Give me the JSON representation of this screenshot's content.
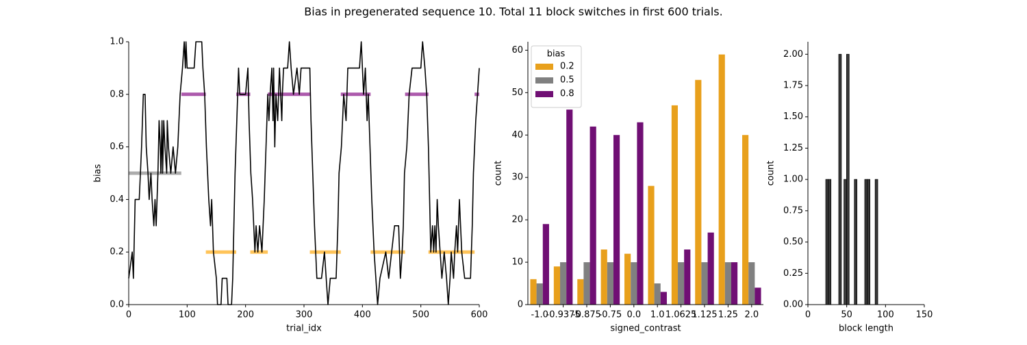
{
  "title": "Bias in pregenerated sequence 10. Total 11 block switches in first 600 trials.",
  "chart_data": [
    {
      "type": "line",
      "xlabel": "trial_idx",
      "ylabel": "bias",
      "xlim": [
        0,
        600
      ],
      "xticks": [
        0,
        100,
        200,
        300,
        400,
        500,
        600
      ],
      "ylim": [
        0,
        1
      ],
      "yticks": [
        {
          "value": 0,
          "label": "0.0"
        },
        {
          "value": 0.2,
          "label": "0.2"
        },
        {
          "value": 0.4,
          "label": "0.4"
        },
        {
          "value": 0.6,
          "label": "0.6"
        },
        {
          "value": 0.8,
          "label": "0.8"
        },
        {
          "value": 1,
          "label": "1.0"
        }
      ],
      "series": [
        {
          "color": "black",
          "x": [
            0,
            6,
            8,
            11,
            18,
            20,
            22,
            25,
            28,
            30,
            33,
            35,
            38,
            40,
            43,
            45,
            47,
            50,
            52,
            54,
            55,
            57,
            58,
            60,
            62,
            65,
            66,
            68,
            72,
            76,
            80,
            84,
            86,
            88,
            92,
            95,
            97,
            98,
            100,
            112,
            115,
            125,
            127,
            130,
            133,
            135,
            137,
            140,
            142,
            145,
            150,
            152,
            158,
            160,
            168,
            170,
            176,
            178,
            180,
            182,
            185,
            188,
            190,
            200,
            204,
            206,
            209,
            212,
            214,
            216,
            218,
            221,
            224,
            228,
            232,
            235,
            238,
            240,
            242,
            245,
            247,
            248,
            250,
            252,
            255,
            258,
            260,
            262,
            263,
            265,
            272,
            275,
            278,
            282,
            288,
            292,
            295,
            310,
            312,
            315,
            318,
            320,
            322,
            330,
            335,
            338,
            341,
            345,
            355,
            358,
            360,
            364,
            368,
            372,
            375,
            395,
            398,
            402,
            405,
            408,
            410,
            413,
            416,
            420,
            426,
            430,
            440,
            445,
            450,
            455,
            462,
            465,
            468,
            470,
            472,
            476,
            480,
            485,
            500,
            503,
            507,
            510,
            513,
            515,
            517,
            520,
            522,
            524,
            526,
            528,
            530,
            533,
            536,
            540,
            544,
            547,
            550,
            552,
            556,
            558,
            561,
            563,
            566,
            570,
            575,
            585,
            588,
            590,
            594,
            597,
            600
          ],
          "values": [
            0.1,
            0.2,
            0.1,
            0.4,
            0.4,
            0.5,
            0.6,
            0.8,
            0.8,
            0.6,
            0.5,
            0.4,
            0.5,
            0.4,
            0.3,
            0.4,
            0.3,
            0.5,
            0.7,
            0.6,
            0.5,
            0.7,
            0.5,
            0.7,
            0.6,
            0.5,
            0.7,
            0.6,
            0.5,
            0.6,
            0.5,
            0.6,
            0.7,
            0.8,
            0.9,
            1.0,
            0.9,
            1.0,
            0.9,
            0.9,
            1.0,
            1.0,
            0.9,
            0.8,
            0.6,
            0.5,
            0.4,
            0.3,
            0.4,
            0.2,
            0.1,
            0,
            0,
            0.1,
            0.1,
            0,
            0,
            0.1,
            0.3,
            0.5,
            0.7,
            0.9,
            0.8,
            0.8,
            0.9,
            0.7,
            0.5,
            0.4,
            0.3,
            0.2,
            0.3,
            0.2,
            0.3,
            0.2,
            0.4,
            0.6,
            0.8,
            0.7,
            0.8,
            0.9,
            0.7,
            0.9,
            0.6,
            0.8,
            0.7,
            0.9,
            0.8,
            0.7,
            0.8,
            0.9,
            0.9,
            1.0,
            0.9,
            0.8,
            0.9,
            0.8,
            0.9,
            0.9,
            0.7,
            0.5,
            0.3,
            0.2,
            0.1,
            0.1,
            0.2,
            0.1,
            0,
            0.1,
            0.1,
            0.3,
            0.5,
            0.6,
            0.8,
            0.7,
            0.9,
            0.9,
            1.0,
            0.8,
            0.9,
            0.7,
            0.8,
            0.6,
            0.4,
            0.2,
            0,
            0.1,
            0.2,
            0.1,
            0.2,
            0.3,
            0.3,
            0.1,
            0.2,
            0.3,
            0.5,
            0.6,
            0.8,
            0.9,
            0.9,
            1.0,
            0.9,
            0.8,
            0.6,
            0.4,
            0.2,
            0.3,
            0.2,
            0.3,
            0.2,
            0.4,
            0.3,
            0.2,
            0.1,
            0.2,
            0.1,
            0,
            0.1,
            0.2,
            0.1,
            0.2,
            0.3,
            0.2,
            0.4,
            0.2,
            0.1,
            0.1,
            0.3,
            0.5,
            0.7,
            0.8,
            0.9
          ]
        }
      ],
      "blocks": [
        {
          "color": "gray",
          "x": [
            0,
            90
          ],
          "values": [
            0.5,
            0.5
          ]
        },
        {
          "color": "purple",
          "x": [
            90,
            132
          ],
          "values": [
            0.8,
            0.8
          ]
        },
        {
          "color": "orange",
          "x": [
            132,
            184
          ],
          "values": [
            0.2,
            0.2
          ]
        },
        {
          "color": "purple",
          "x": [
            184,
            208
          ],
          "values": [
            0.8,
            0.8
          ]
        },
        {
          "color": "orange",
          "x": [
            208,
            238
          ],
          "values": [
            0.2,
            0.2
          ]
        },
        {
          "color": "purple",
          "x": [
            238,
            310
          ],
          "values": [
            0.8,
            0.8
          ]
        },
        {
          "color": "orange",
          "x": [
            310,
            363
          ],
          "values": [
            0.2,
            0.2
          ]
        },
        {
          "color": "purple",
          "x": [
            363,
            414
          ],
          "values": [
            0.8,
            0.8
          ]
        },
        {
          "color": "orange",
          "x": [
            414,
            473
          ],
          "values": [
            0.2,
            0.2
          ]
        },
        {
          "color": "purple",
          "x": [
            473,
            513
          ],
          "values": [
            0.8,
            0.8
          ]
        },
        {
          "color": "orange",
          "x": [
            513,
            592
          ],
          "values": [
            0.2,
            0.2
          ]
        },
        {
          "color": "purple",
          "x": [
            592,
            600
          ],
          "values": [
            0.8,
            0.8
          ]
        }
      ]
    },
    {
      "type": "bar",
      "xlabel": "signed_contrast",
      "ylabel": "count",
      "categories": [
        "-1.0",
        "-0.9375",
        "-0.875",
        "-0.75",
        "0.0",
        "1.0",
        "1.0625",
        "1.125",
        "1.25",
        "2.0"
      ],
      "ylim": [
        0,
        62
      ],
      "yticks": [
        0,
        10,
        20,
        30,
        40,
        50,
        60
      ],
      "legend": {
        "title": "bias",
        "position": "upper left"
      },
      "series": [
        {
          "name": "0.2",
          "color": "#e8a01c",
          "values": [
            6,
            9,
            6,
            13,
            12,
            28,
            47,
            53,
            59,
            40
          ]
        },
        {
          "name": "0.5",
          "color": "#808080",
          "values": [
            5,
            10,
            10,
            10,
            10,
            5,
            10,
            10,
            10,
            10
          ]
        },
        {
          "name": "0.8",
          "color": "#700f74",
          "values": [
            19,
            46,
            42,
            40,
            43,
            3,
            13,
            17,
            10,
            4
          ]
        }
      ]
    },
    {
      "type": "histogram",
      "xlabel": "block length",
      "ylabel": "count",
      "color": "#3a3a3a",
      "bins": [
        23,
        26.35,
        29.7,
        33.05,
        36.4,
        39.75,
        43.1,
        46.45,
        49.8,
        53.15,
        56.5,
        59.85,
        63.2,
        66.55,
        69.9,
        73.25,
        76.6,
        79.95,
        83.3,
        86.65,
        90
      ],
      "counts": [
        1,
        1,
        0,
        0,
        0,
        2,
        0,
        1,
        2,
        0,
        0,
        1,
        0,
        0,
        0,
        1,
        1,
        0,
        0,
        1
      ],
      "xlim": [
        0,
        150
      ],
      "xticks": [
        0,
        50,
        100,
        150
      ],
      "ylim": [
        0,
        2.1
      ],
      "yticks": [
        {
          "value": 0,
          "label": "0.00"
        },
        {
          "value": 0.25,
          "label": "0.25"
        },
        {
          "value": 0.5,
          "label": "0.50"
        },
        {
          "value": 0.75,
          "label": "0.75"
        },
        {
          "value": 1,
          "label": "1.00"
        },
        {
          "value": 1.25,
          "label": "1.25"
        },
        {
          "value": 1.5,
          "label": "1.50"
        },
        {
          "value": 1.75,
          "label": "1.75"
        },
        {
          "value": 2,
          "label": "2.00"
        }
      ]
    }
  ]
}
